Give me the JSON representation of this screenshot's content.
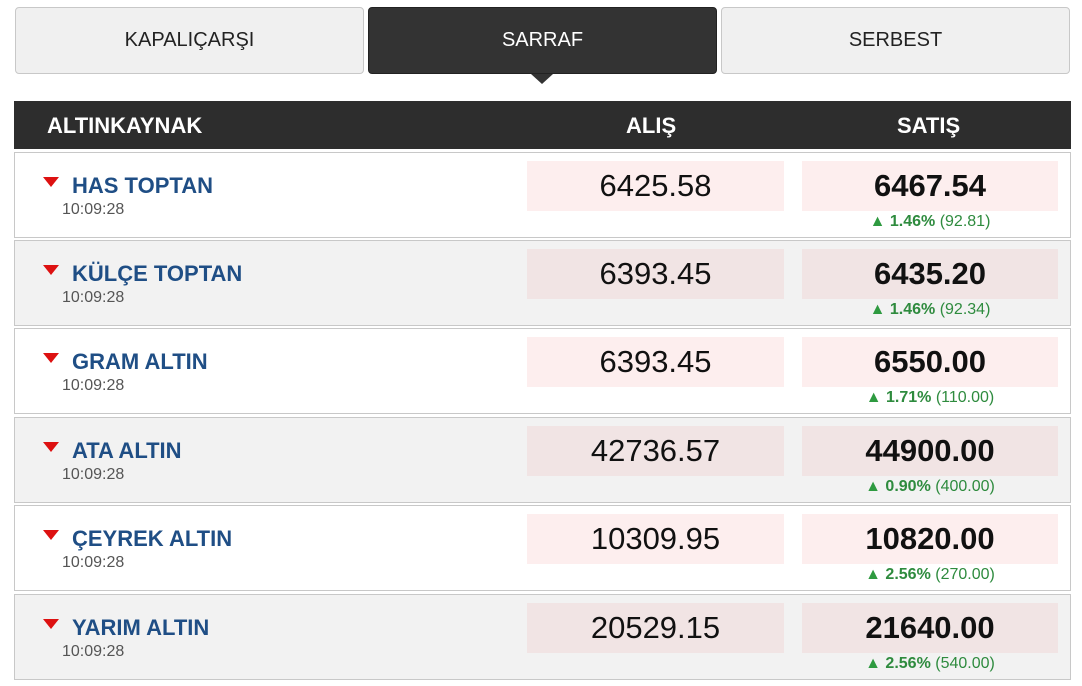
{
  "tabs": [
    "KAPALIÇARŞI",
    "SARRAF",
    "SERBEST"
  ],
  "active_tab": 1,
  "table": {
    "header": [
      "ALTINKAYNAK",
      "ALIŞ",
      "SATIŞ"
    ],
    "rows": [
      {
        "name": "HAS TOPTAN",
        "time": "10:09:28",
        "buy": "6425.58",
        "sell": "6467.54",
        "change": "1.46%",
        "change_amount": "(92.81)"
      },
      {
        "name": "KÜLÇE TOPTAN",
        "time": "10:09:28",
        "buy": "6393.45",
        "sell": "6435.20",
        "change": "1.46%",
        "change_amount": "(92.34)"
      },
      {
        "name": "GRAM ALTIN",
        "time": "10:09:28",
        "buy": "6393.45",
        "sell": "6550.00",
        "change": "1.71%",
        "change_amount": "(110.00)"
      },
      {
        "name": "ATA ALTIN",
        "time": "10:09:28",
        "buy": "42736.57",
        "sell": "44900.00",
        "change": "0.90%",
        "change_amount": "(400.00)"
      },
      {
        "name": "ÇEYREK ALTIN",
        "time": "10:09:28",
        "buy": "10309.95",
        "sell": "10820.00",
        "change": "2.56%",
        "change_amount": "(270.00)"
      },
      {
        "name": "YARIM ALTIN",
        "time": "10:09:28",
        "buy": "20529.15",
        "sell": "21640.00",
        "change": "2.56%",
        "change_amount": "(540.00)"
      }
    ]
  }
}
